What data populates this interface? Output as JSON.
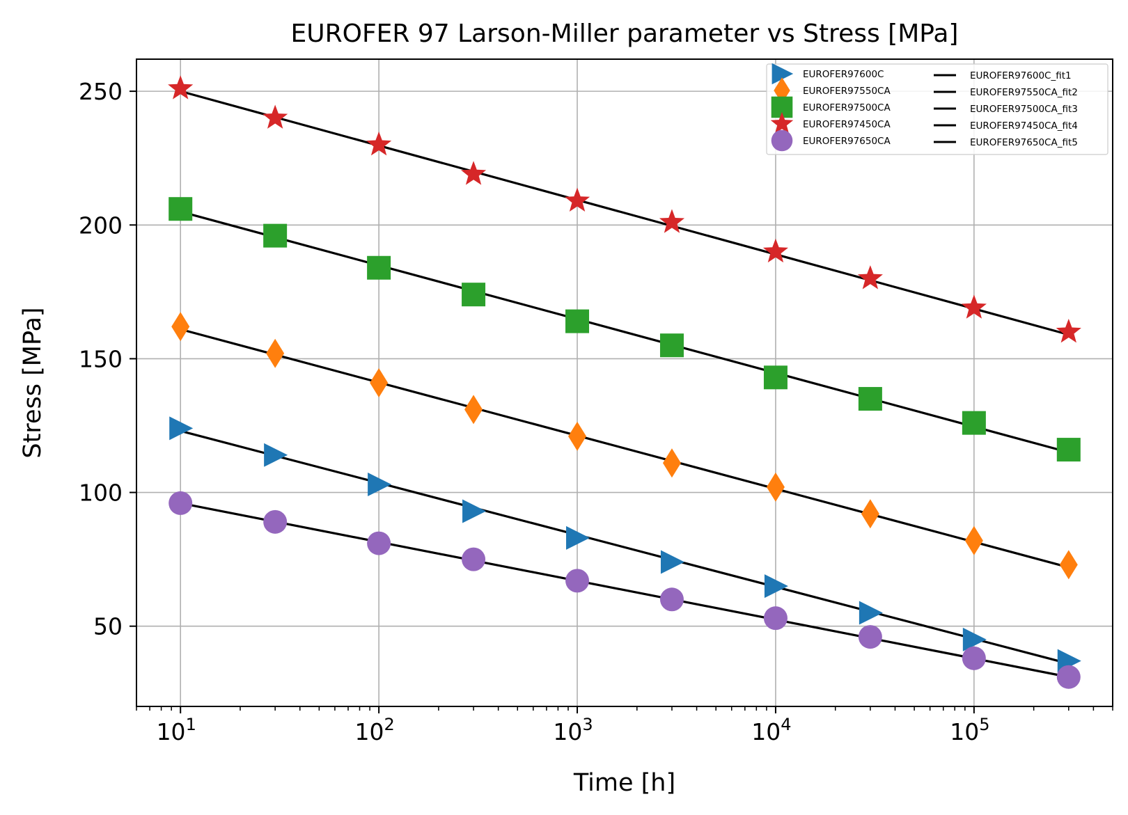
{
  "chart_data": {
    "type": "scatter",
    "title": "EUROFER 97 Larson-Miller parameter vs Stress [MPa]",
    "xlabel": "Time [h]",
    "ylabel": "Stress [MPa]",
    "xscale": "log",
    "xlim": [
      6,
      500000
    ],
    "ylim": [
      20,
      262
    ],
    "grid": true,
    "legend_placement": "top-right",
    "legend_columns": 2,
    "x_ticks": [
      {
        "value": 10,
        "base": "10",
        "exp": "1"
      },
      {
        "value": 100,
        "base": "10",
        "exp": "2"
      },
      {
        "value": 1000,
        "base": "10",
        "exp": "3"
      },
      {
        "value": 10000,
        "base": "10",
        "exp": "4"
      },
      {
        "value": 100000,
        "base": "10",
        "exp": "5"
      }
    ],
    "y_ticks": [
      50,
      100,
      150,
      200,
      250
    ],
    "x": [
      10,
      30,
      100,
      300,
      1000,
      3000,
      10000,
      30000,
      100000,
      300000
    ],
    "series": [
      {
        "name": "EUROFER97600C",
        "marker": "triangle-right",
        "color": "#1f77b4",
        "values": [
          124,
          114,
          103,
          93,
          83,
          74,
          65,
          55,
          45,
          37
        ]
      },
      {
        "name": "EUROFER97550CA",
        "marker": "thin-diamond",
        "color": "#ff7f0e",
        "values": [
          162,
          152,
          141,
          131,
          121,
          111,
          102,
          92,
          82,
          73
        ]
      },
      {
        "name": "EUROFER97500CA",
        "marker": "square",
        "color": "#2ca02c",
        "values": [
          206,
          196,
          184,
          174,
          164,
          155,
          143,
          135,
          126,
          116
        ]
      },
      {
        "name": "EUROFER97450CA",
        "marker": "star",
        "color": "#d62728",
        "values": [
          251,
          240,
          230,
          219,
          209,
          201,
          190,
          180,
          169,
          160
        ]
      },
      {
        "name": "EUROFER97650CA",
        "marker": "circle",
        "color": "#9467bd",
        "values": [
          96,
          89,
          81,
          75,
          67,
          60,
          53,
          46,
          38,
          31
        ]
      }
    ],
    "fits": [
      {
        "name": "EUROFER97600C_fit1",
        "color": "#000000",
        "x": [
          10,
          300000
        ],
        "values": [
          123,
          36
        ]
      },
      {
        "name": "EUROFER97550CA_fit2",
        "color": "#000000",
        "x": [
          10,
          300000
        ],
        "values": [
          161,
          72
        ]
      },
      {
        "name": "EUROFER97500CA_fit3",
        "color": "#000000",
        "x": [
          10,
          300000
        ],
        "values": [
          205,
          115
        ]
      },
      {
        "name": "EUROFER97450CA_fit4",
        "color": "#000000",
        "x": [
          10,
          300000
        ],
        "values": [
          250,
          159
        ]
      },
      {
        "name": "EUROFER97650CA_fit5",
        "color": "#000000",
        "x": [
          10,
          300000
        ],
        "values": [
          96,
          31
        ]
      }
    ]
  }
}
